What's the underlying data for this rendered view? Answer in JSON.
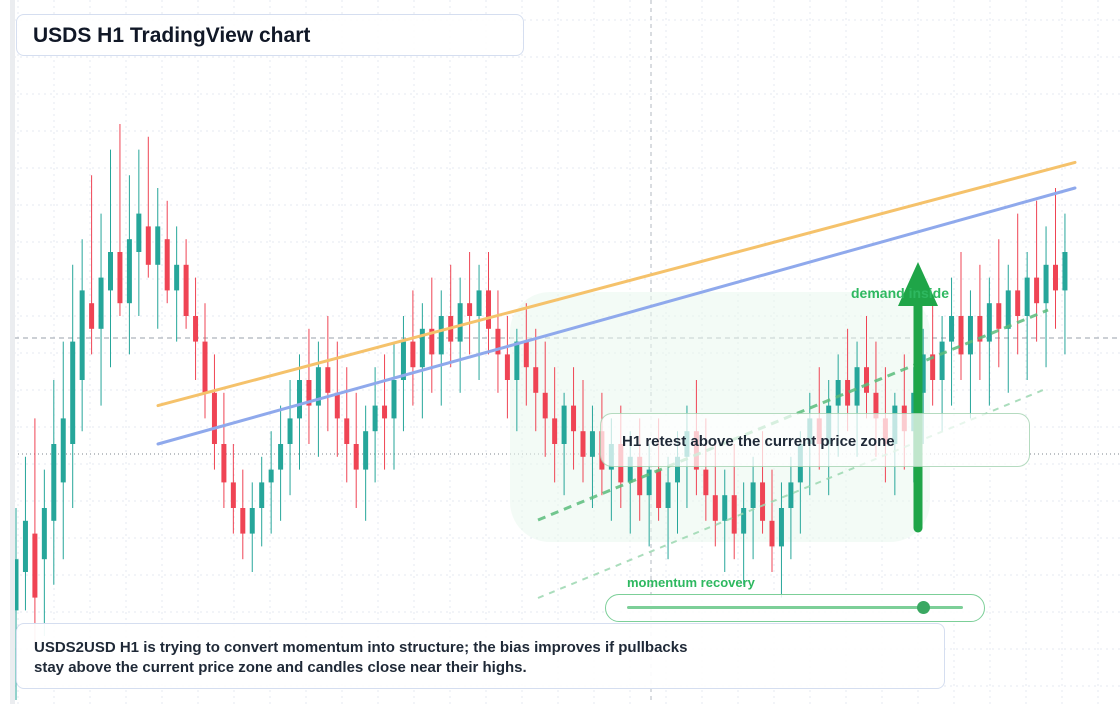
{
  "title": "USDS H1 TradingView chart",
  "retest_label": "H1 retest above the current price zone",
  "demand_label": "demand inside",
  "momentum": {
    "label": "momentum recovery",
    "level": 0.88
  },
  "note": "USDS2USD H1 is trying to convert momentum into structure; the bias improves if pullbacks stay above the current price zone and candles close near their highs.",
  "colors": {
    "up": "#26a69a",
    "down": "#ef4454",
    "resistance_trend": "#f5c26b",
    "support_trend": "#8fa9ec",
    "accent_green": "#2eb860",
    "arrow_green": "#1fa548"
  },
  "chart_data": {
    "type": "candlestick",
    "timeframe": "H1",
    "symbol": "USDS2USD",
    "price_range": [
      0,
      100
    ],
    "candles": [
      {
        "o": 14,
        "h": 30,
        "l": 0,
        "c": 22,
        "up": true
      },
      {
        "o": 20,
        "h": 38,
        "l": 14,
        "c": 28,
        "up": true
      },
      {
        "o": 26,
        "h": 44,
        "l": 8,
        "c": 16,
        "up": false
      },
      {
        "o": 22,
        "h": 36,
        "l": 10,
        "c": 30,
        "up": true
      },
      {
        "o": 28,
        "h": 50,
        "l": 18,
        "c": 40,
        "up": true
      },
      {
        "o": 34,
        "h": 56,
        "l": 22,
        "c": 44,
        "up": true
      },
      {
        "o": 40,
        "h": 68,
        "l": 30,
        "c": 56,
        "up": true
      },
      {
        "o": 50,
        "h": 72,
        "l": 42,
        "c": 64,
        "up": true
      },
      {
        "o": 62,
        "h": 82,
        "l": 54,
        "c": 58,
        "up": false
      },
      {
        "o": 58,
        "h": 76,
        "l": 46,
        "c": 66,
        "up": true
      },
      {
        "o": 64,
        "h": 86,
        "l": 52,
        "c": 70,
        "up": true
      },
      {
        "o": 70,
        "h": 90,
        "l": 60,
        "c": 62,
        "up": false
      },
      {
        "o": 62,
        "h": 82,
        "l": 54,
        "c": 72,
        "up": true
      },
      {
        "o": 70,
        "h": 86,
        "l": 60,
        "c": 76,
        "up": true
      },
      {
        "o": 74,
        "h": 88,
        "l": 66,
        "c": 68,
        "up": false
      },
      {
        "o": 68,
        "h": 80,
        "l": 58,
        "c": 74,
        "up": true
      },
      {
        "o": 72,
        "h": 78,
        "l": 62,
        "c": 64,
        "up": false
      },
      {
        "o": 64,
        "h": 74,
        "l": 56,
        "c": 68,
        "up": true
      },
      {
        "o": 68,
        "h": 72,
        "l": 58,
        "c": 60,
        "up": false
      },
      {
        "o": 60,
        "h": 66,
        "l": 50,
        "c": 56,
        "up": false
      },
      {
        "o": 56,
        "h": 62,
        "l": 44,
        "c": 48,
        "up": false
      },
      {
        "o": 48,
        "h": 54,
        "l": 36,
        "c": 40,
        "up": false
      },
      {
        "o": 40,
        "h": 48,
        "l": 30,
        "c": 34,
        "up": false
      },
      {
        "o": 34,
        "h": 40,
        "l": 26,
        "c": 30,
        "up": false
      },
      {
        "o": 30,
        "h": 36,
        "l": 22,
        "c": 26,
        "up": false
      },
      {
        "o": 26,
        "h": 34,
        "l": 20,
        "c": 30,
        "up": true
      },
      {
        "o": 30,
        "h": 38,
        "l": 24,
        "c": 34,
        "up": true
      },
      {
        "o": 34,
        "h": 42,
        "l": 26,
        "c": 36,
        "up": true
      },
      {
        "o": 36,
        "h": 46,
        "l": 28,
        "c": 40,
        "up": true
      },
      {
        "o": 40,
        "h": 50,
        "l": 32,
        "c": 44,
        "up": true
      },
      {
        "o": 44,
        "h": 54,
        "l": 36,
        "c": 50,
        "up": true
      },
      {
        "o": 50,
        "h": 58,
        "l": 40,
        "c": 46,
        "up": false
      },
      {
        "o": 46,
        "h": 56,
        "l": 38,
        "c": 52,
        "up": true
      },
      {
        "o": 52,
        "h": 60,
        "l": 42,
        "c": 48,
        "up": false
      },
      {
        "o": 48,
        "h": 56,
        "l": 38,
        "c": 44,
        "up": false
      },
      {
        "o": 44,
        "h": 52,
        "l": 34,
        "c": 40,
        "up": false
      },
      {
        "o": 40,
        "h": 48,
        "l": 30,
        "c": 36,
        "up": false
      },
      {
        "o": 36,
        "h": 46,
        "l": 28,
        "c": 42,
        "up": true
      },
      {
        "o": 42,
        "h": 52,
        "l": 34,
        "c": 46,
        "up": true
      },
      {
        "o": 46,
        "h": 54,
        "l": 36,
        "c": 44,
        "up": false
      },
      {
        "o": 44,
        "h": 56,
        "l": 36,
        "c": 50,
        "up": true
      },
      {
        "o": 50,
        "h": 60,
        "l": 42,
        "c": 56,
        "up": true
      },
      {
        "o": 56,
        "h": 64,
        "l": 46,
        "c": 52,
        "up": false
      },
      {
        "o": 52,
        "h": 62,
        "l": 44,
        "c": 58,
        "up": true
      },
      {
        "o": 58,
        "h": 66,
        "l": 48,
        "c": 54,
        "up": false
      },
      {
        "o": 54,
        "h": 64,
        "l": 46,
        "c": 60,
        "up": true
      },
      {
        "o": 60,
        "h": 68,
        "l": 52,
        "c": 56,
        "up": false
      },
      {
        "o": 56,
        "h": 66,
        "l": 48,
        "c": 62,
        "up": true
      },
      {
        "o": 62,
        "h": 70,
        "l": 54,
        "c": 60,
        "up": false
      },
      {
        "o": 60,
        "h": 68,
        "l": 50,
        "c": 64,
        "up": true
      },
      {
        "o": 64,
        "h": 70,
        "l": 54,
        "c": 58,
        "up": false
      },
      {
        "o": 58,
        "h": 64,
        "l": 48,
        "c": 54,
        "up": false
      },
      {
        "o": 54,
        "h": 60,
        "l": 44,
        "c": 50,
        "up": false
      },
      {
        "o": 50,
        "h": 58,
        "l": 42,
        "c": 56,
        "up": true
      },
      {
        "o": 56,
        "h": 62,
        "l": 46,
        "c": 52,
        "up": false
      },
      {
        "o": 52,
        "h": 58,
        "l": 42,
        "c": 48,
        "up": false
      },
      {
        "o": 48,
        "h": 56,
        "l": 38,
        "c": 44,
        "up": false
      },
      {
        "o": 44,
        "h": 52,
        "l": 34,
        "c": 40,
        "up": false
      },
      {
        "o": 40,
        "h": 48,
        "l": 32,
        "c": 46,
        "up": true
      },
      {
        "o": 46,
        "h": 52,
        "l": 36,
        "c": 42,
        "up": false
      },
      {
        "o": 42,
        "h": 50,
        "l": 34,
        "c": 38,
        "up": false
      },
      {
        "o": 38,
        "h": 46,
        "l": 30,
        "c": 42,
        "up": true
      },
      {
        "o": 42,
        "h": 48,
        "l": 32,
        "c": 36,
        "up": false
      },
      {
        "o": 36,
        "h": 44,
        "l": 28,
        "c": 40,
        "up": true
      },
      {
        "o": 40,
        "h": 46,
        "l": 30,
        "c": 34,
        "up": false
      },
      {
        "o": 34,
        "h": 42,
        "l": 26,
        "c": 38,
        "up": true
      },
      {
        "o": 38,
        "h": 44,
        "l": 28,
        "c": 32,
        "up": false
      },
      {
        "o": 32,
        "h": 40,
        "l": 24,
        "c": 36,
        "up": true
      },
      {
        "o": 36,
        "h": 44,
        "l": 28,
        "c": 30,
        "up": false
      },
      {
        "o": 30,
        "h": 38,
        "l": 22,
        "c": 34,
        "up": true
      },
      {
        "o": 34,
        "h": 42,
        "l": 26,
        "c": 38,
        "up": true
      },
      {
        "o": 38,
        "h": 46,
        "l": 30,
        "c": 42,
        "up": true
      },
      {
        "o": 42,
        "h": 50,
        "l": 32,
        "c": 36,
        "up": false
      },
      {
        "o": 36,
        "h": 44,
        "l": 28,
        "c": 32,
        "up": false
      },
      {
        "o": 32,
        "h": 40,
        "l": 24,
        "c": 28,
        "up": false
      },
      {
        "o": 28,
        "h": 36,
        "l": 20,
        "c": 32,
        "up": true
      },
      {
        "o": 32,
        "h": 40,
        "l": 22,
        "c": 26,
        "up": false
      },
      {
        "o": 26,
        "h": 34,
        "l": 18,
        "c": 30,
        "up": true
      },
      {
        "o": 30,
        "h": 38,
        "l": 22,
        "c": 34,
        "up": true
      },
      {
        "o": 34,
        "h": 42,
        "l": 26,
        "c": 28,
        "up": false
      },
      {
        "o": 28,
        "h": 36,
        "l": 20,
        "c": 24,
        "up": false
      },
      {
        "o": 24,
        "h": 34,
        "l": 16,
        "c": 30,
        "up": true
      },
      {
        "o": 30,
        "h": 38,
        "l": 22,
        "c": 34,
        "up": true
      },
      {
        "o": 34,
        "h": 42,
        "l": 26,
        "c": 40,
        "up": true
      },
      {
        "o": 40,
        "h": 48,
        "l": 32,
        "c": 44,
        "up": true
      },
      {
        "o": 44,
        "h": 52,
        "l": 36,
        "c": 40,
        "up": false
      },
      {
        "o": 40,
        "h": 50,
        "l": 32,
        "c": 46,
        "up": true
      },
      {
        "o": 46,
        "h": 54,
        "l": 38,
        "c": 50,
        "up": true
      },
      {
        "o": 50,
        "h": 58,
        "l": 42,
        "c": 46,
        "up": false
      },
      {
        "o": 46,
        "h": 56,
        "l": 38,
        "c": 52,
        "up": true
      },
      {
        "o": 52,
        "h": 60,
        "l": 44,
        "c": 48,
        "up": false
      },
      {
        "o": 48,
        "h": 56,
        "l": 38,
        "c": 44,
        "up": false
      },
      {
        "o": 44,
        "h": 52,
        "l": 34,
        "c": 40,
        "up": false
      },
      {
        "o": 40,
        "h": 48,
        "l": 32,
        "c": 46,
        "up": true
      },
      {
        "o": 46,
        "h": 54,
        "l": 36,
        "c": 42,
        "up": false
      },
      {
        "o": 42,
        "h": 52,
        "l": 34,
        "c": 48,
        "up": true
      },
      {
        "o": 48,
        "h": 58,
        "l": 40,
        "c": 54,
        "up": true
      },
      {
        "o": 54,
        "h": 62,
        "l": 46,
        "c": 50,
        "up": false
      },
      {
        "o": 50,
        "h": 60,
        "l": 42,
        "c": 56,
        "up": true
      },
      {
        "o": 56,
        "h": 66,
        "l": 46,
        "c": 60,
        "up": true
      },
      {
        "o": 60,
        "h": 70,
        "l": 50,
        "c": 54,
        "up": false
      },
      {
        "o": 54,
        "h": 64,
        "l": 44,
        "c": 60,
        "up": true
      },
      {
        "o": 60,
        "h": 68,
        "l": 50,
        "c": 56,
        "up": false
      },
      {
        "o": 56,
        "h": 66,
        "l": 46,
        "c": 62,
        "up": true
      },
      {
        "o": 62,
        "h": 72,
        "l": 52,
        "c": 58,
        "up": false
      },
      {
        "o": 58,
        "h": 68,
        "l": 48,
        "c": 64,
        "up": true
      },
      {
        "o": 64,
        "h": 76,
        "l": 54,
        "c": 60,
        "up": false
      },
      {
        "o": 60,
        "h": 70,
        "l": 50,
        "c": 66,
        "up": true
      },
      {
        "o": 66,
        "h": 78,
        "l": 56,
        "c": 62,
        "up": false
      },
      {
        "o": 62,
        "h": 74,
        "l": 52,
        "c": 68,
        "up": true
      },
      {
        "o": 68,
        "h": 80,
        "l": 58,
        "c": 64,
        "up": false
      },
      {
        "o": 64,
        "h": 76,
        "l": 54,
        "c": 70,
        "up": true
      }
    ],
    "trendlines": [
      {
        "name": "resistance",
        "from": [
          0,
          46
        ],
        "to": [
          111,
          84
        ]
      },
      {
        "name": "support",
        "from": [
          0,
          40
        ],
        "to": [
          111,
          80
        ]
      }
    ],
    "annotations": [
      "demand inside",
      "H1 retest above the current price zone",
      "momentum recovery"
    ]
  }
}
